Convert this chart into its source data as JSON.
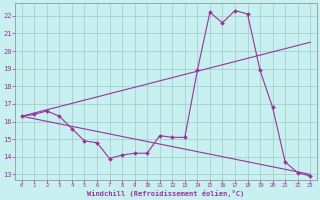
{
  "background_color": "#c8f0f0",
  "grid_color": "#a0c8c8",
  "line_color": "#993399",
  "xlabel": "Windchill (Refroidissement éolien,°C)",
  "xlim": [
    -0.5,
    23.5
  ],
  "ylim": [
    12.7,
    22.7
  ],
  "yticks": [
    13,
    14,
    15,
    16,
    17,
    18,
    19,
    20,
    21,
    22
  ],
  "xticks": [
    0,
    1,
    2,
    3,
    4,
    5,
    6,
    7,
    8,
    9,
    10,
    11,
    12,
    13,
    14,
    15,
    16,
    17,
    18,
    19,
    20,
    21,
    22,
    23
  ],
  "curve1_x": [
    0,
    1,
    2,
    3,
    4,
    5,
    6,
    7,
    8,
    9,
    10,
    11,
    12,
    13,
    14,
    15,
    16,
    17,
    18,
    19,
    20,
    21,
    22,
    23
  ],
  "curve1_y": [
    16.3,
    16.4,
    16.6,
    16.3,
    15.6,
    14.9,
    14.8,
    13.9,
    14.1,
    14.2,
    14.2,
    15.2,
    15.1,
    15.1,
    18.9,
    22.2,
    21.6,
    22.3,
    22.1,
    18.9,
    16.8,
    13.7,
    13.1,
    12.9
  ],
  "curve2_x": [
    0,
    23
  ],
  "curve2_y": [
    16.3,
    20.5
  ],
  "curve3_x": [
    0,
    23
  ],
  "curve3_y": [
    16.3,
    13.0
  ]
}
